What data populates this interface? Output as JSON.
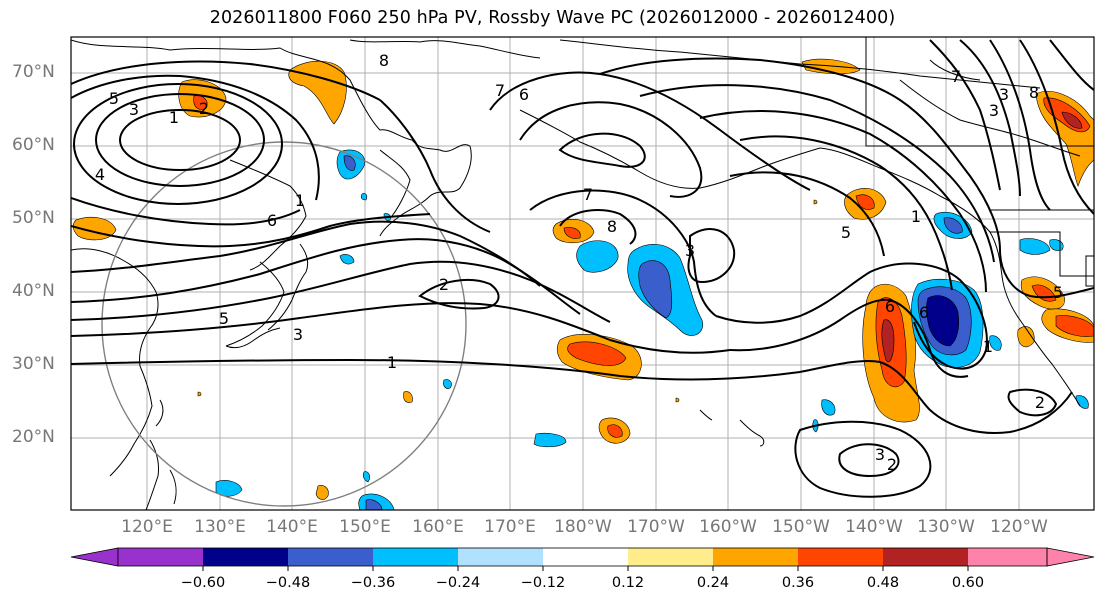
{
  "title": "2026011800 F060 250 hPa PV, Rossby Wave PC (2026012000 - 2026012400)",
  "latitude_labels": [
    "70°N",
    "60°N",
    "50°N",
    "40°N",
    "30°N",
    "20°N"
  ],
  "longitude_labels": [
    "120°E",
    "130°E",
    "140°E",
    "150°E",
    "160°E",
    "170°E",
    "180°W",
    "170°W",
    "160°W",
    "150°W",
    "140°W",
    "130°W",
    "120°W"
  ],
  "contour_labels": [
    "5",
    "3",
    "2",
    "1",
    "4",
    "6",
    "8",
    "7",
    "6",
    "1",
    "7",
    "8",
    "3",
    "2",
    "5",
    "3",
    "1",
    "6",
    "1",
    "5",
    "3",
    "6",
    "7",
    "8",
    "3",
    "3",
    "2",
    "1",
    "2",
    "5"
  ],
  "colorbar": {
    "ticks": [
      "−0.60",
      "−0.48",
      "−0.36",
      "−0.24",
      "−0.12",
      "0.12",
      "0.24",
      "0.36",
      "0.48",
      "0.60"
    ],
    "colors": [
      "#9932CC",
      "#00008B",
      "#3A5FCD",
      "#00BFFF",
      "#B0E2FF",
      "#FFFFFF",
      "#FFEC8B",
      "#FFA500",
      "#FF4500",
      "#B22222",
      "#FF82AB"
    ]
  }
}
